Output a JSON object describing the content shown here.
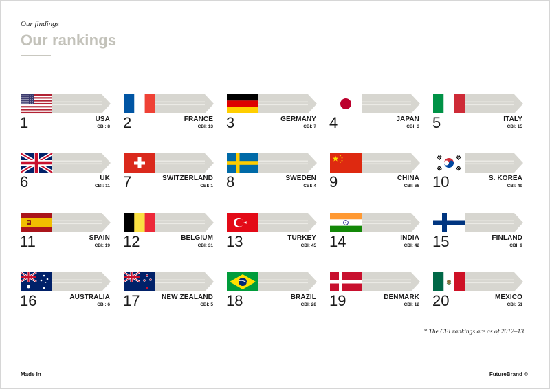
{
  "header": {
    "section_label": "Our findings",
    "title": "Our rankings"
  },
  "rankings": [
    {
      "rank": "1",
      "country": "USA",
      "cbi": "CBI: 8",
      "flag": "usa-flag-icon"
    },
    {
      "rank": "2",
      "country": "FRANCE",
      "cbi": "CBI: 13",
      "flag": "france-flag-icon"
    },
    {
      "rank": "3",
      "country": "GERMANY",
      "cbi": "CBI: 7",
      "flag": "germany-flag-icon"
    },
    {
      "rank": "4",
      "country": "JAPAN",
      "cbi": "CBI: 3",
      "flag": "japan-flag-icon"
    },
    {
      "rank": "5",
      "country": "ITALY",
      "cbi": "CBI: 15",
      "flag": "italy-flag-icon"
    },
    {
      "rank": "6",
      "country": "UK",
      "cbi": "CBI: 11",
      "flag": "uk-flag-icon"
    },
    {
      "rank": "7",
      "country": "SWITZERLAND",
      "cbi": "CBI: 1",
      "flag": "switzerland-flag-icon"
    },
    {
      "rank": "8",
      "country": "SWEDEN",
      "cbi": "CBI: 4",
      "flag": "sweden-flag-icon"
    },
    {
      "rank": "9",
      "country": "CHINA",
      "cbi": "CBI: 66",
      "flag": "china-flag-icon"
    },
    {
      "rank": "10",
      "country": "S. KOREA",
      "cbi": "CBI: 49",
      "flag": "south-korea-flag-icon"
    },
    {
      "rank": "11",
      "country": "SPAIN",
      "cbi": "CBI: 19",
      "flag": "spain-flag-icon"
    },
    {
      "rank": "12",
      "country": "BELGIUM",
      "cbi": "CBI: 31",
      "flag": "belgium-flag-icon"
    },
    {
      "rank": "13",
      "country": "TURKEY",
      "cbi": "CBI: 45",
      "flag": "turkey-flag-icon"
    },
    {
      "rank": "14",
      "country": "INDIA",
      "cbi": "CBI: 42",
      "flag": "india-flag-icon"
    },
    {
      "rank": "15",
      "country": "FINLAND",
      "cbi": "CBI: 9",
      "flag": "finland-flag-icon"
    },
    {
      "rank": "16",
      "country": "AUSTRALIA",
      "cbi": "CBI: 6",
      "flag": "australia-flag-icon"
    },
    {
      "rank": "17",
      "country": "NEW ZEALAND",
      "cbi": "CBI: 5",
      "flag": "new-zealand-flag-icon"
    },
    {
      "rank": "18",
      "country": "BRAZIL",
      "cbi": "CBI: 28",
      "flag": "brazil-flag-icon"
    },
    {
      "rank": "19",
      "country": "DENMARK",
      "cbi": "CBI: 12",
      "flag": "denmark-flag-icon"
    },
    {
      "rank": "20",
      "country": "MEXICO",
      "cbi": "CBI: 51",
      "flag": "mexico-flag-icon"
    }
  ],
  "colors": {
    "banner_gray": "#d7d6d0",
    "banner_stripe": "#ebeae5",
    "title_gray": "#c3c2ba"
  },
  "footnote": "* The CBI rankings are as of 2012–13",
  "footer": {
    "left": "Made In",
    "right": "FutureBrand ©"
  }
}
